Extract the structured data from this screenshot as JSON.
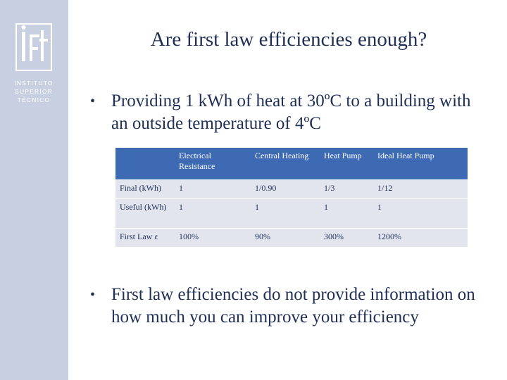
{
  "logo": {
    "mark_text": "ist",
    "line1": "INSTITUTO",
    "line2": "SUPERIOR",
    "line3": "TÉCNICO"
  },
  "slide": {
    "title": "Are first law efficiencies enough?",
    "bullet1": "Providing 1 kWh of heat at 30ºC to a building with an outside temperature of 4ºC",
    "bullet2": "First law efficiencies do not provide information on how much you can improve your efficiency",
    "bullet_glyph": "•"
  },
  "table": {
    "headers": [
      "",
      "Electrical Resistance",
      "Central Heating",
      "Heat Pump",
      "Ideal Heat Pump"
    ],
    "rows": [
      [
        "Final (kWh)",
        "1",
        "1/0.90",
        "1/3",
        "1/12"
      ],
      [
        "Useful (kWh)",
        "1",
        "1",
        "1",
        "1"
      ],
      [
        "First Law ε",
        "100%",
        "90%",
        "300%",
        "1200%"
      ]
    ]
  },
  "colors": {
    "sidebar": "#c8cfe0",
    "text": "#1f2f55",
    "table_header": "#3d6ab3",
    "table_row": "#e2e5ee"
  }
}
